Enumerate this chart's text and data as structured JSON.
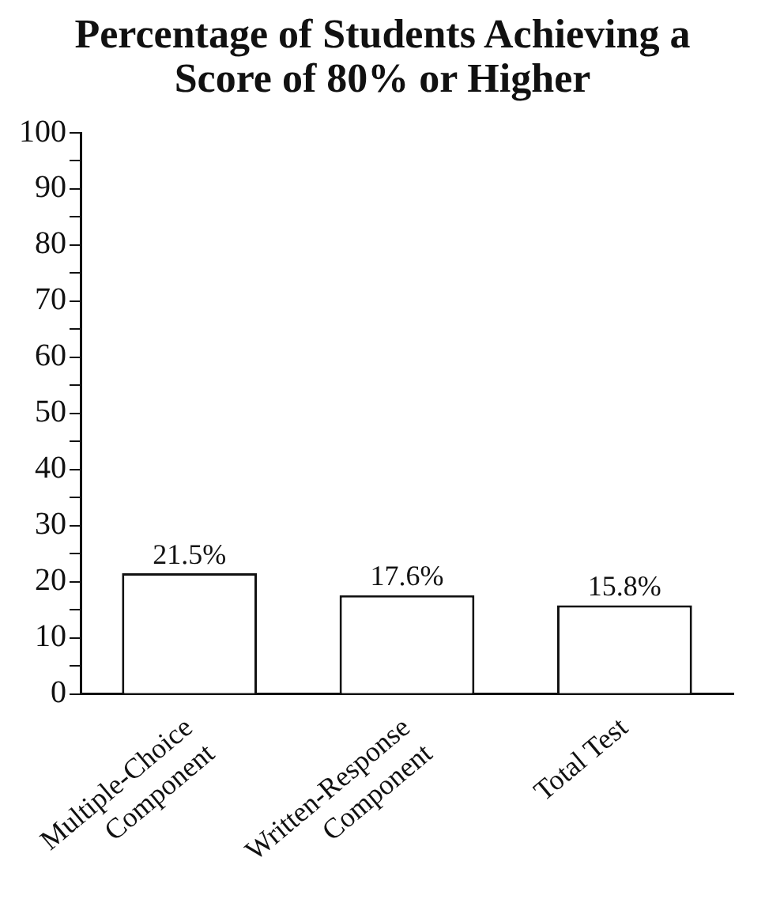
{
  "chart_data": {
    "type": "bar",
    "title": "Percentage of Students Achieving a Score of 80% or Higher",
    "categories": [
      "Multiple-Choice\nComponent",
      "Written-Response\nComponent",
      "Total Test"
    ],
    "values": [
      21.5,
      17.6,
      15.8
    ],
    "color": "#ffffff",
    "value_labels": [
      "21.5%",
      "17.6%",
      "15.8%"
    ],
    "ylim": [
      0,
      100
    ],
    "yticks": [
      0,
      {
        "value": 5,
        "label": null
      },
      10,
      {
        "value": 15,
        "label": null
      },
      20,
      {
        "value": 25,
        "label": null
      },
      30,
      {
        "value": 35,
        "label": null
      },
      40,
      {
        "value": 45,
        "label": null
      },
      50,
      {
        "value": 55,
        "label": null
      },
      60,
      {
        "value": 65,
        "label": null
      },
      70,
      {
        "value": 75,
        "label": null
      },
      80,
      {
        "value": 85,
        "label": null
      },
      90,
      {
        "value": 95,
        "label": null
      },
      100
    ],
    "grid": false,
    "legend": false
  }
}
